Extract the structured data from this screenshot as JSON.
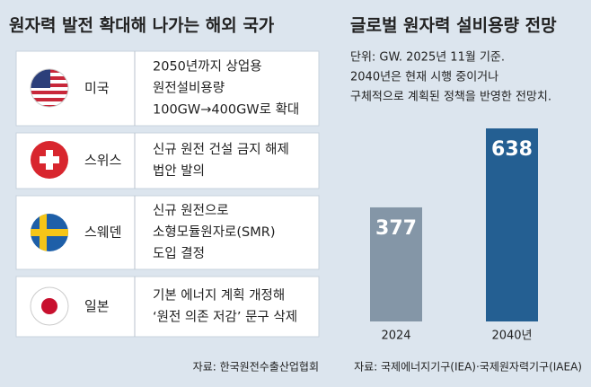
{
  "left": {
    "title": "원자력 발전 확대해 나가는 해외 국가",
    "countries": [
      {
        "name": "미국",
        "lines": [
          "2050년까지 상업용",
          "원전설비용량",
          "100GW→400GW로 확대"
        ]
      },
      {
        "name": "스위스",
        "lines": [
          "신규 원전 건설 금지 해제",
          "법안 발의"
        ]
      },
      {
        "name": "스웨덴",
        "lines": [
          "신규 원전으로",
          "소형모듈원자로(SMR)",
          "도입 결정"
        ]
      },
      {
        "name": "일본",
        "lines": [
          "기본 에너지 계획 개정해",
          "‘원전 의존 저감’ 문구 삭제"
        ]
      }
    ],
    "source": "자료: 한국원전수출산업협회"
  },
  "chart_data": {
    "type": "bar",
    "title": "글로벌 원자력 설비용량 전망",
    "subtitle": [
      "단위: GW. 2025년 11월 기준.",
      "2040년은 현재 시행 중이거나",
      "구체적으로 계획된 정책을 반영한 전망치."
    ],
    "categories": [
      "2024",
      "2040년"
    ],
    "values": [
      377,
      638
    ],
    "colors": [
      "#8496a7",
      "#245f92"
    ],
    "source": "자료: 국제에너지기구(IEA)·국제원자력기구(IAEA)"
  }
}
